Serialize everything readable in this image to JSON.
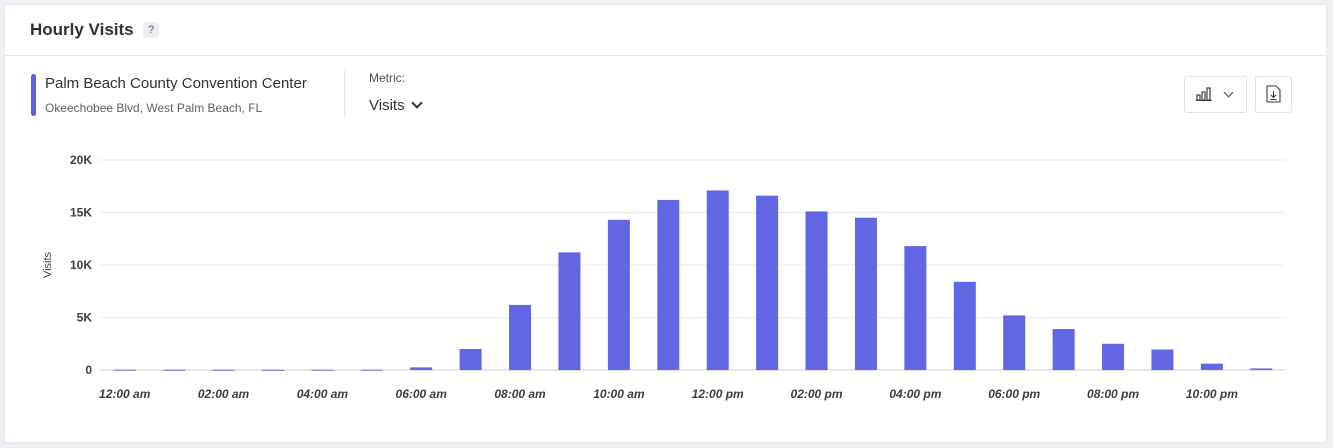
{
  "header": {
    "title": "Hourly Visits",
    "help_label": "?"
  },
  "venue": {
    "name": "Palm Beach County Convention Center",
    "address": "Okeechobee Blvd, West Palm Beach, FL",
    "color": "#5b5fe3"
  },
  "metric": {
    "label": "Metric:",
    "selected": "Visits"
  },
  "toolbar": {
    "chart_type_icon": "bar-chart-icon",
    "download_icon": "download-icon"
  },
  "chart_data": {
    "type": "bar",
    "ylabel": "Visits",
    "xlabel": "",
    "ylim": [
      0,
      20000
    ],
    "yticks": [
      {
        "value": 0,
        "label": "0"
      },
      {
        "value": 5000,
        "label": "5K"
      },
      {
        "value": 10000,
        "label": "10K"
      },
      {
        "value": 15000,
        "label": "15K"
      },
      {
        "value": 20000,
        "label": "20K"
      }
    ],
    "categories": [
      "12:00 am",
      "01:00 am",
      "02:00 am",
      "03:00 am",
      "04:00 am",
      "05:00 am",
      "06:00 am",
      "07:00 am",
      "08:00 am",
      "09:00 am",
      "10:00 am",
      "11:00 am",
      "12:00 pm",
      "01:00 pm",
      "02:00 pm",
      "03:00 pm",
      "04:00 pm",
      "05:00 pm",
      "06:00 pm",
      "07:00 pm",
      "08:00 pm",
      "09:00 pm",
      "10:00 pm",
      "11:00 pm"
    ],
    "xtick_labels": [
      "12:00 am",
      "02:00 am",
      "04:00 am",
      "06:00 am",
      "08:00 am",
      "10:00 am",
      "12:00 pm",
      "02:00 pm",
      "04:00 pm",
      "06:00 pm",
      "08:00 pm",
      "10:00 pm"
    ],
    "values": [
      30,
      20,
      20,
      20,
      30,
      30,
      250,
      2000,
      6200,
      11200,
      14300,
      16200,
      17100,
      16600,
      15100,
      14500,
      11800,
      8400,
      5200,
      3900,
      2500,
      1950,
      600,
      150
    ],
    "color": "#6265e4",
    "grid": true,
    "legend": "none"
  }
}
